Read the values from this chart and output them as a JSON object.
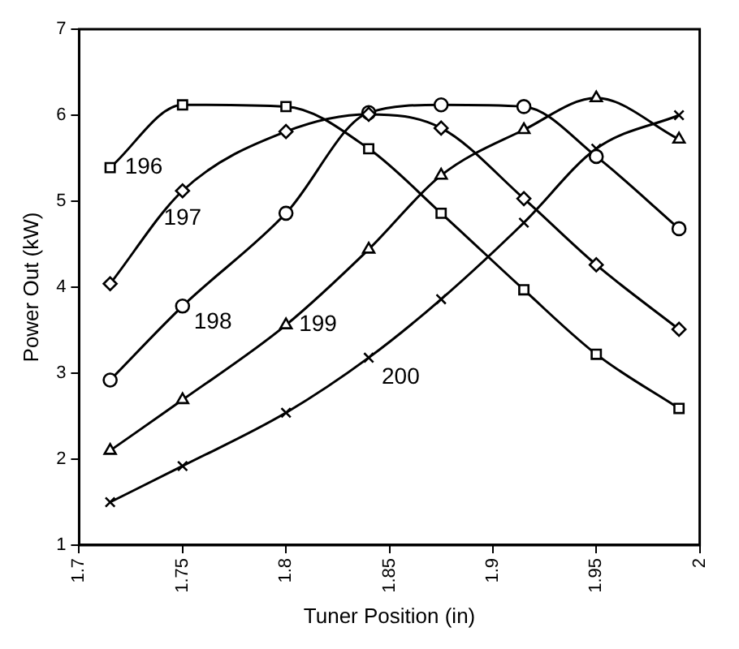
{
  "chart_data": {
    "type": "line",
    "xlabel": "Tuner Position (in)",
    "ylabel": "Power Out (kW)",
    "x": [
      1.715,
      1.75,
      1.8,
      1.84,
      1.875,
      1.915,
      1.95,
      1.99
    ],
    "xlim": [
      1.7,
      2
    ],
    "xticks": [
      1.7,
      1.75,
      1.8,
      1.85,
      1.9,
      1.95,
      2
    ],
    "ylim": [
      1,
      7
    ],
    "yticks": [
      1,
      2,
      3,
      4,
      5,
      6,
      7
    ],
    "grid": false,
    "legend": false,
    "line_style": "solid",
    "series": [
      {
        "name": "196",
        "color": "#000000",
        "marker": "square",
        "values": [
          5.39,
          6.12,
          6.1,
          5.61,
          4.86,
          3.97,
          3.22,
          2.59
        ]
      },
      {
        "name": "197",
        "color": "#000000",
        "marker": "diamond",
        "values": [
          4.04,
          5.12,
          5.81,
          6.01,
          5.85,
          5.03,
          4.26,
          3.51
        ]
      },
      {
        "name": "198",
        "color": "#000000",
        "marker": "circle",
        "values": [
          2.92,
          3.78,
          4.86,
          6.03,
          6.12,
          6.1,
          5.52,
          4.68
        ]
      },
      {
        "name": "199",
        "color": "#000000",
        "marker": "triangle",
        "values": [
          2.1,
          2.69,
          3.56,
          4.44,
          5.3,
          5.83,
          6.2,
          5.72
        ]
      },
      {
        "name": "200",
        "color": "#000000",
        "marker": "cross",
        "values": [
          1.5,
          1.92,
          2.54,
          3.18,
          3.86,
          4.75,
          5.61,
          6.0
        ]
      }
    ]
  }
}
